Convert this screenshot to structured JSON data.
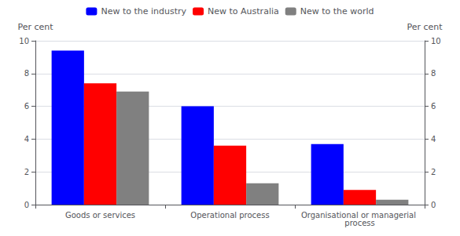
{
  "chart_data": {
    "type": "bar",
    "categories": [
      "Goods or services",
      "Operational process",
      "Organisational or managerial process"
    ],
    "series": [
      {
        "name": "New to the industry",
        "color": "#0000ff",
        "values": [
          9.4,
          6.0,
          3.7
        ]
      },
      {
        "name": "New to Australia",
        "color": "#ff0000",
        "values": [
          7.4,
          3.6,
          0.9
        ]
      },
      {
        "name": "New to the world",
        "color": "#808080",
        "values": [
          6.9,
          1.3,
          0.3
        ]
      }
    ],
    "ylabel": "Per cent",
    "y2label": "Per cent",
    "ylim": [
      0,
      10
    ],
    "yticks": [
      0,
      2,
      4,
      6,
      8,
      10
    ],
    "y2lim": [
      0,
      10
    ],
    "y2ticks": [
      0,
      2,
      4,
      6,
      8,
      10
    ],
    "grid": true,
    "legend": "top"
  }
}
